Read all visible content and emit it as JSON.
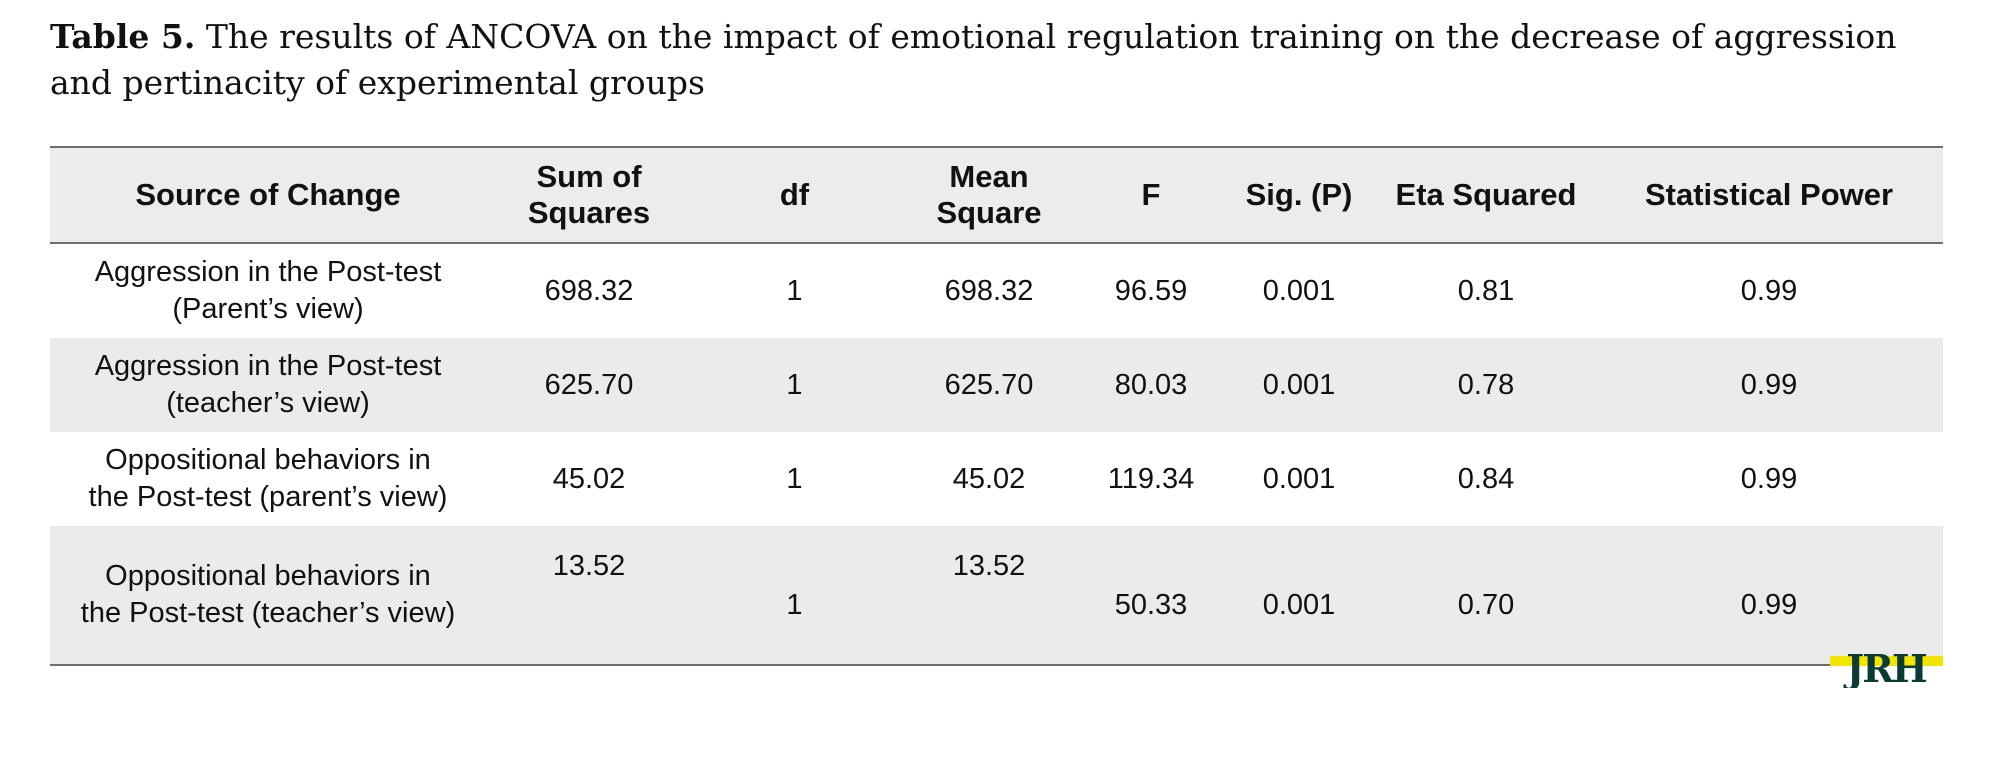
{
  "caption": {
    "label": "Table 5.",
    "text": " The results of ANCOVA on the impact of emotional regulation training on the decrease of aggression and pertinacity of experimental groups"
  },
  "table": {
    "headers": [
      "Source of Change",
      "Sum of Squares",
      "df",
      "Mean Square",
      "F",
      "Sig. (P)",
      "Eta Squared",
      "Statistical Power"
    ],
    "rows": [
      {
        "source_line1": "Aggression in the Post-test",
        "source_line2": "(Parent’s view)",
        "sum_of_squares": "698.32",
        "df": "1",
        "mean_square": "698.32",
        "f": "96.59",
        "sig": "0.001",
        "eta": "0.81",
        "power": "0.99"
      },
      {
        "source_line1": "Aggression in the Post-test",
        "source_line2": "(teacher’s view)",
        "sum_of_squares": "625.70",
        "df": "1",
        "mean_square": "625.70",
        "f": "80.03",
        "sig": "0.001",
        "eta": "0.78",
        "power": "0.99"
      },
      {
        "source_line1": "Oppositional behaviors in",
        "source_line2": "the Post-test (parent’s view)",
        "sum_of_squares": "45.02",
        "df": "1",
        "mean_square": "45.02",
        "f": "119.34",
        "sig": "0.001",
        "eta": "0.84",
        "power": "0.99"
      },
      {
        "source_line1": "Oppositional behaviors in",
        "source_line2": "the Post-test (teacher’s view)",
        "sum_of_squares": "13.52",
        "df": "1",
        "mean_square": "13.52",
        "f": "50.33",
        "sig": "0.001",
        "eta": "0.70",
        "power": "0.99"
      }
    ]
  },
  "logo": {
    "text": "JRH",
    "colors": {
      "fill": "#0b3b34",
      "accent": "#f2e600"
    }
  },
  "colors": {
    "header_bg": "#ececec",
    "shaded_row_bg": "#ebebeb",
    "rule": "#6f6f6f",
    "text": "#111111"
  }
}
